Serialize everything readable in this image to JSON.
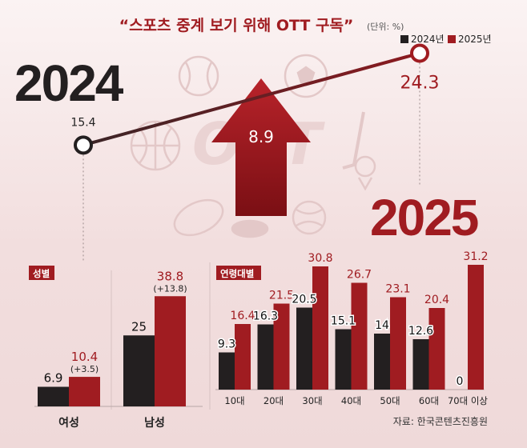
{
  "header": {
    "title": "“스포츠 중계 보기 위해 OTT 구독”",
    "unit": "(단위: %)"
  },
  "legend": [
    {
      "label": "2024년",
      "color": "#231f20"
    },
    {
      "label": "2025년",
      "color": "#a01c21"
    }
  ],
  "colors": {
    "y2024": "#231f20",
    "y2025": "#a01c21",
    "title": "#a01c21"
  },
  "source": "자료: 한국콘텐츠진흥원",
  "chart_data": [
    {
      "id": "overall",
      "type": "line",
      "title": "스포츠 중계 보기 위해 OTT 구독",
      "years": [
        "2024",
        "2025"
      ],
      "x": [
        "2024",
        "2025"
      ],
      "values": [
        15.4,
        24.3
      ],
      "change": "8.9",
      "value_labels": [
        "15.4",
        "24.3"
      ]
    },
    {
      "id": "gender",
      "type": "bar",
      "section_label": "성별",
      "categories": [
        "여성",
        "남성"
      ],
      "series": [
        {
          "name": "2024년",
          "values": [
            6.9,
            25
          ]
        },
        {
          "name": "2025년",
          "values": [
            10.4,
            38.8
          ]
        }
      ],
      "labels_2024": [
        "6.9",
        "25"
      ],
      "labels_2025": [
        "10.4",
        "38.8"
      ],
      "changes": [
        "(+3.5)",
        "(+13.8)"
      ],
      "ylim": [
        0,
        40
      ]
    },
    {
      "id": "age",
      "type": "bar",
      "section_label": "연령대별",
      "categories": [
        "10대",
        "20대",
        "30대",
        "40대",
        "50대",
        "60대",
        "70대 이상"
      ],
      "series": [
        {
          "name": "2024년",
          "values": [
            9.3,
            16.3,
            20.5,
            15.1,
            14,
            12.6,
            0
          ]
        },
        {
          "name": "2025년",
          "values": [
            16.4,
            21.5,
            30.8,
            26.7,
            23.1,
            20.4,
            31.2
          ]
        }
      ],
      "labels_2024": [
        "9.3",
        "16.3",
        "20.5",
        "15.1",
        "14",
        "12.6",
        "0"
      ],
      "labels_2025": [
        "16.4",
        "21.5",
        "30.8",
        "26.7",
        "23.1",
        "20.4",
        "31.2"
      ],
      "ylim": [
        0,
        32
      ]
    }
  ]
}
